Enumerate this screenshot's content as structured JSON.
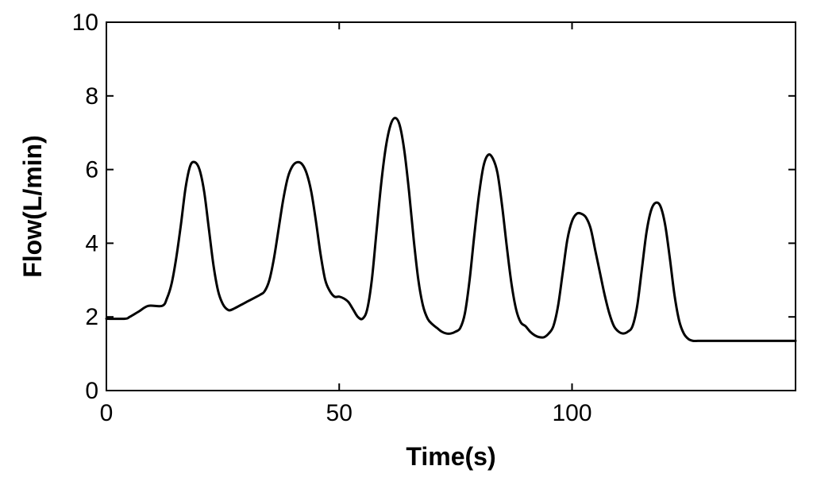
{
  "chart_data": {
    "type": "line",
    "title": "",
    "xlabel": "Time(s)",
    "ylabel": "Flow(L/min)",
    "xlim": [
      0,
      148
    ],
    "ylim": [
      0,
      10
    ],
    "xticks": [
      0,
      50,
      100
    ],
    "yticks": [
      0,
      2,
      4,
      6,
      8,
      10
    ],
    "grid": false,
    "colors": {
      "line": "#000000",
      "axes": "#000000"
    },
    "series": [
      {
        "x": [
          0,
          4,
          5,
          7,
          9,
          12,
          13,
          14,
          15,
          16,
          17,
          18,
          19,
          20,
          21,
          22,
          23,
          24,
          25,
          26,
          27,
          30,
          33,
          34,
          35,
          36,
          37,
          38,
          39,
          40,
          41,
          42,
          43,
          44,
          45,
          46,
          47,
          48,
          49,
          50,
          51,
          52,
          53,
          54,
          55,
          56,
          57,
          58,
          59,
          60,
          61,
          62,
          63,
          64,
          65,
          66,
          67,
          68,
          69,
          70,
          71,
          72,
          73,
          74,
          75,
          76,
          77,
          78,
          79,
          80,
          81,
          82,
          83,
          84,
          85,
          86,
          87,
          88,
          89,
          90,
          91,
          92,
          93,
          94,
          95,
          96,
          97,
          98,
          99,
          100,
          101,
          102,
          103,
          104,
          105,
          106,
          107,
          108,
          109,
          110,
          111,
          112,
          113,
          114,
          115,
          116,
          117,
          118,
          119,
          120,
          121,
          122,
          123,
          124,
          125,
          126,
          127,
          128,
          129,
          130,
          131,
          132,
          133,
          134,
          135,
          136,
          137,
          138,
          139,
          140,
          141,
          148
        ],
        "y": [
          1.95,
          1.95,
          2.0,
          2.15,
          2.3,
          2.3,
          2.5,
          2.9,
          3.6,
          4.5,
          5.5,
          6.1,
          6.2,
          6.0,
          5.4,
          4.4,
          3.4,
          2.7,
          2.35,
          2.2,
          2.2,
          2.4,
          2.6,
          2.7,
          3.0,
          3.6,
          4.4,
          5.2,
          5.8,
          6.1,
          6.2,
          6.15,
          5.9,
          5.4,
          4.6,
          3.7,
          3.0,
          2.7,
          2.55,
          2.55,
          2.5,
          2.4,
          2.2,
          2.0,
          1.95,
          2.2,
          3.0,
          4.3,
          5.6,
          6.6,
          7.2,
          7.4,
          7.2,
          6.5,
          5.4,
          4.1,
          3.0,
          2.3,
          1.95,
          1.8,
          1.7,
          1.6,
          1.55,
          1.55,
          1.6,
          1.7,
          2.1,
          3.0,
          4.2,
          5.3,
          6.1,
          6.4,
          6.3,
          5.9,
          5.0,
          3.9,
          2.9,
          2.2,
          1.85,
          1.75,
          1.6,
          1.5,
          1.45,
          1.45,
          1.55,
          1.75,
          2.3,
          3.2,
          4.1,
          4.6,
          4.8,
          4.8,
          4.7,
          4.4,
          3.8,
          3.2,
          2.6,
          2.1,
          1.75,
          1.6,
          1.55,
          1.6,
          1.75,
          2.3,
          3.3,
          4.3,
          4.9,
          5.1,
          5.0,
          4.5,
          3.6,
          2.6,
          1.9,
          1.55,
          1.4,
          1.35,
          1.35,
          1.35,
          1.35,
          1.35,
          1.35,
          1.35,
          1.35,
          1.35,
          1.35,
          1.35,
          1.35,
          1.35,
          1.35,
          1.35,
          1.35,
          1.35
        ]
      }
    ]
  }
}
